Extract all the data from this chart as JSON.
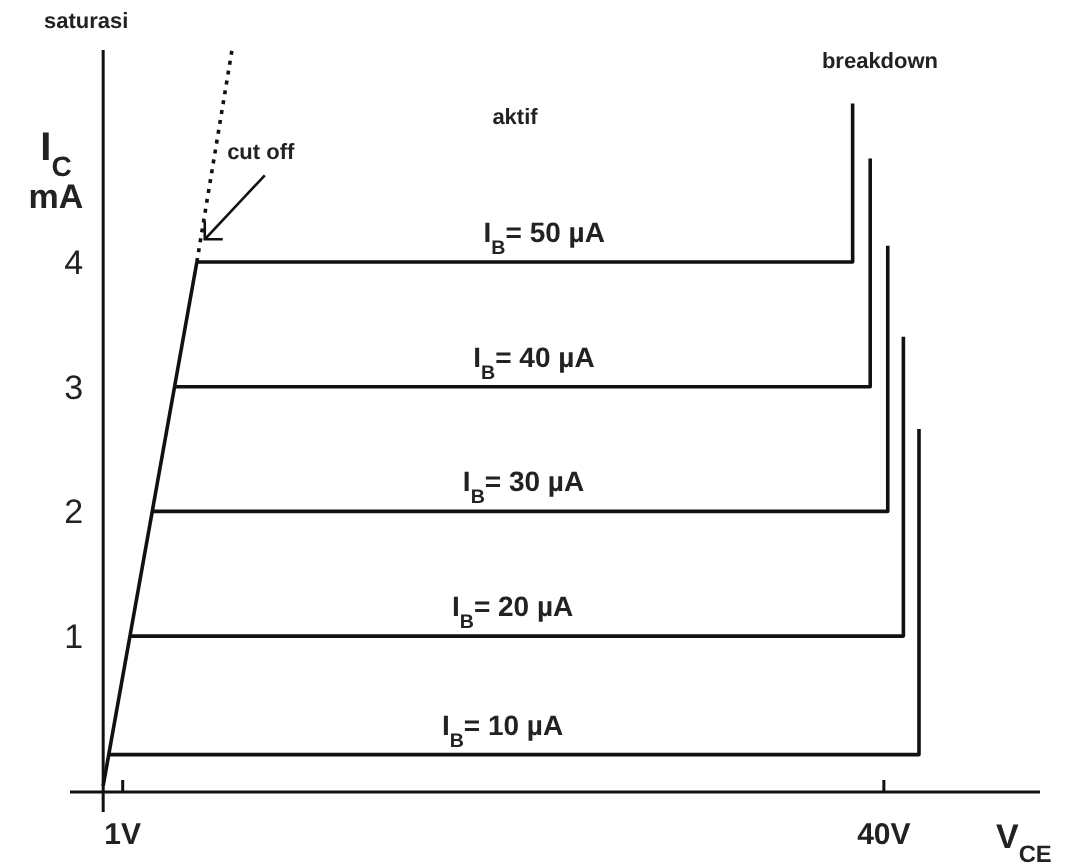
{
  "chart_data": {
    "type": "line",
    "xlabel": "V$_{CE}$",
    "ylabel": "I$_{C}$ mA",
    "xlim": [
      -1.7,
      48
    ],
    "ylim": [
      -0.25,
      5.7
    ],
    "xticks": [
      {
        "value": 1,
        "label": "1V"
      },
      {
        "value": 40,
        "label": "40V"
      }
    ],
    "yticks": [
      1,
      2,
      3,
      4
    ],
    "legend": false,
    "grid": false,
    "marker": "none",
    "series": [
      {
        "color": "#111111",
        "x": [
          0,
          4.8
        ],
        "values": [
          -0.2,
          4
        ]
      },
      {
        "color": "#111111",
        "line_style": "dotted",
        "x": [
          4.8,
          6.6
        ],
        "values": [
          4,
          5.7
        ]
      },
      {
        "name": "I$_{B}$= 50 µA",
        "color": "#111111",
        "x": [
          4.8,
          38.4,
          38.4
        ],
        "values": [
          4,
          4,
          5.27
        ]
      },
      {
        "name": "I$_{B}$= 40 µA",
        "color": "#111111",
        "x": [
          3.66,
          39.3,
          39.3
        ],
        "values": [
          3,
          3,
          4.83
        ]
      },
      {
        "name": "I$_{B}$= 30 µA",
        "color": "#111111",
        "x": [
          2.51,
          40.2,
          40.2
        ],
        "values": [
          2,
          2,
          4.13
        ]
      },
      {
        "name": "I$_{B}$= 20 µA",
        "color": "#111111",
        "x": [
          1.37,
          41.0,
          41.0
        ],
        "values": [
          1,
          1,
          3.4
        ]
      },
      {
        "name": "I$_{B}$= 10 µA",
        "color": "#111111",
        "x": [
          0.29,
          41.8,
          41.8
        ],
        "values": [
          0.05,
          0.05,
          2.66
        ]
      }
    ],
    "annotations": [
      "saturasi",
      "aktif",
      "breakdown",
      {
        "text": "cut off",
        "x": 5.0,
        "y": 4.15
      }
    ]
  }
}
